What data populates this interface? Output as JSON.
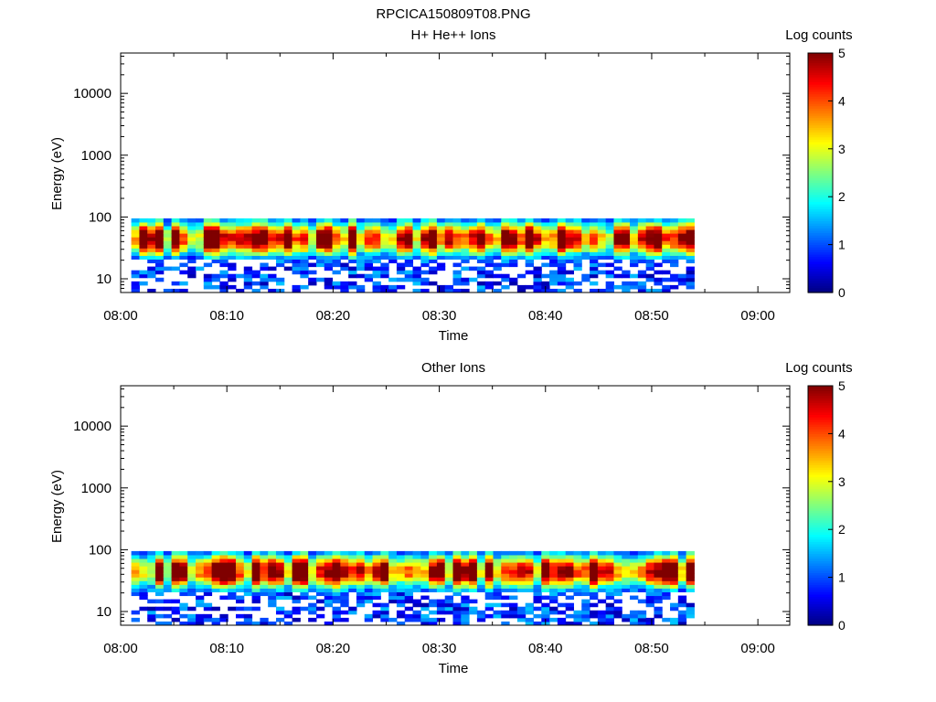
{
  "figure": {
    "title": "RPCICA150809T08.PNG"
  },
  "chart_data": [
    {
      "type": "heatmap",
      "title": "H+ He++ Ions",
      "xlabel": "Time",
      "ylabel": "Energy (eV)",
      "colorbar_label": "Log counts",
      "x_ticks": [
        "08:00",
        "08:10",
        "08:20",
        "08:30",
        "08:40",
        "08:50",
        "09:00"
      ],
      "xlim": [
        "08:00",
        "09:03"
      ],
      "data_extent_minutes": [
        1,
        54
      ],
      "y_scale": "log",
      "y_ticks": [
        "10",
        "100",
        "1000",
        "10000"
      ],
      "ylim": [
        6,
        45000
      ],
      "energy_band_eV": [
        6,
        95
      ],
      "peak_energy_eV": 45,
      "colorbar_ticks": [
        "0",
        "1",
        "2",
        "3",
        "4",
        "5"
      ],
      "colorbar_range": [
        0,
        5
      ],
      "colormap": [
        "#00007f",
        "#0000ff",
        "#007fff",
        "#00ffff",
        "#7fff7f",
        "#ffff00",
        "#ff7f00",
        "#ff0000",
        "#7f0000"
      ]
    },
    {
      "type": "heatmap",
      "title": "Other Ions",
      "xlabel": "Time",
      "ylabel": "Energy (eV)",
      "colorbar_label": "Log counts",
      "x_ticks": [
        "08:00",
        "08:10",
        "08:20",
        "08:30",
        "08:40",
        "08:50",
        "09:00"
      ],
      "xlim": [
        "08:00",
        "09:03"
      ],
      "data_extent_minutes": [
        1,
        54
      ],
      "y_scale": "log",
      "y_ticks": [
        "10",
        "100",
        "1000",
        "10000"
      ],
      "ylim": [
        6,
        45000
      ],
      "energy_band_eV": [
        6,
        95
      ],
      "peak_energy_eV": 45,
      "colorbar_ticks": [
        "0",
        "1",
        "2",
        "3",
        "4",
        "5"
      ],
      "colorbar_range": [
        0,
        5
      ],
      "colormap": [
        "#00007f",
        "#0000ff",
        "#007fff",
        "#00ffff",
        "#7fff7f",
        "#ffff00",
        "#ff7f00",
        "#ff0000",
        "#7f0000"
      ]
    }
  ]
}
